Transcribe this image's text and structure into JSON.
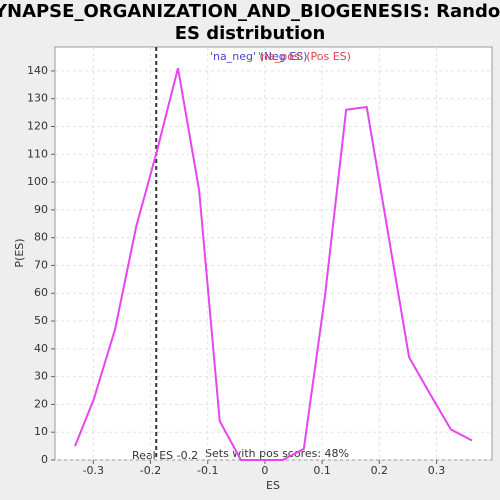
{
  "chart_data": {
    "type": "line",
    "title": [
      "SYNAPSE_ORGANIZATION_AND_BIOGENESIS: Random",
      "ES distribution"
    ],
    "x_label": "ES",
    "y_label": "P(ES)",
    "legend": [
      {
        "label": "'na_neg' (Neg ES)",
        "color": "#4444cc"
      },
      {
        "label": "'na_pos' (Pos ES)",
        "color": "#dd4444"
      }
    ],
    "x": [
      -0.332,
      -0.299,
      -0.262,
      -0.225,
      -0.189,
      -0.152,
      -0.115,
      -0.079,
      -0.042,
      -0.005,
      0.031,
      0.068,
      0.105,
      0.142,
      0.178,
      0.215,
      0.252,
      0.288,
      0.325,
      0.362
    ],
    "values": [
      5,
      22,
      47,
      84,
      111,
      141,
      97,
      14,
      0,
      0,
      0,
      4,
      59,
      126,
      127,
      82,
      37,
      24,
      11,
      7
    ],
    "color": "#e645f0",
    "real_es": -0.19,
    "annotations": [
      "Real ES -0.2",
      "Sets with pos scores: 48%"
    ],
    "xlim": [
      -0.367,
      0.397
    ],
    "ylim": [
      0,
      148.6
    ],
    "xticks": [
      -0.3,
      -0.2,
      -0.1,
      0,
      0.1,
      0.2,
      0.3
    ],
    "yticks": [
      0,
      10,
      20,
      30,
      40,
      50,
      60,
      70,
      80,
      90,
      100,
      110,
      120,
      130,
      140
    ],
    "grid": true
  }
}
